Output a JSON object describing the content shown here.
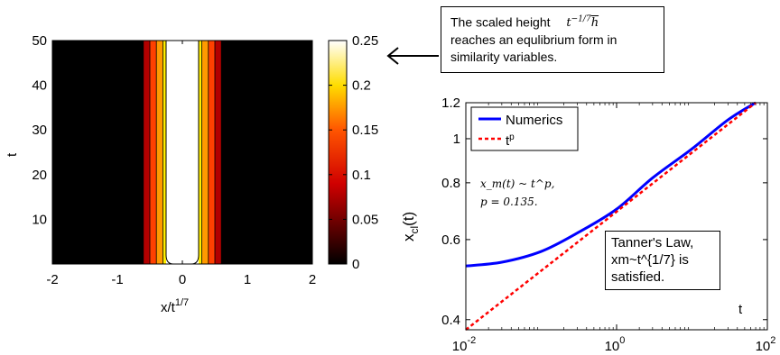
{
  "chart_data": [
    {
      "type": "heatmap",
      "xlabel": "x/t",
      "xlabel_sup": "1/7",
      "ylabel": "t",
      "xlim": [
        -2,
        2
      ],
      "ylim": [
        0,
        50
      ],
      "x_ticks": [
        -2,
        -1,
        0,
        1,
        2
      ],
      "y_ticks": [
        10,
        20,
        30,
        40,
        50
      ],
      "colorbar_range": [
        0,
        0.25
      ],
      "colorbar_ticks": [
        "0",
        "0.05",
        "0.1",
        "0.15",
        "0.2",
        "0.25"
      ],
      "colormap": "hot",
      "contour_levels": [
        0.05,
        0.1,
        0.15,
        0.2
      ],
      "profile": {
        "x": [
          -0.6,
          -0.5,
          -0.4,
          -0.25,
          0,
          0.25,
          0.4,
          0.5,
          0.6
        ],
        "value": [
          0.03,
          0.07,
          0.12,
          0.2,
          0.25,
          0.2,
          0.12,
          0.07,
          0.03
        ]
      },
      "colors": {
        "background": "#000000",
        "band_outer": "#b30000",
        "band_2": "#ff4000",
        "band_3": "#ff9a00",
        "band_4": "#ffee00",
        "core": "#ffffff"
      }
    },
    {
      "type": "line",
      "xscale": "log",
      "yscale": "log",
      "xlabel": "t",
      "ylabel": "x",
      "ylabel_sub": "cl",
      "ylabel_suffix": "(t)",
      "xlim": [
        0.01,
        100
      ],
      "ylim": [
        0.38,
        1.2
      ],
      "x_ticks": [
        {
          "base": "10",
          "exp": "-2",
          "value": 0.01
        },
        {
          "base": "10",
          "exp": "0",
          "value": 1
        },
        {
          "base": "10",
          "exp": "2",
          "value": 100
        }
      ],
      "y_ticks": [
        {
          "label": "0.4",
          "value": 0.4
        },
        {
          "label": "0.6",
          "value": 0.6
        },
        {
          "label": "0.8",
          "value": 0.8
        },
        {
          "label": "1",
          "value": 1.0
        },
        {
          "label": "1.2",
          "value": 1.2
        }
      ],
      "legend": {
        "position": "top-left",
        "entries": [
          "Numerics",
          "t"
        ],
        "entries_sup": [
          "",
          "p"
        ]
      },
      "series": [
        {
          "name": "Numerics",
          "color": "#0000ff",
          "style": "solid",
          "x": [
            0.01,
            0.03,
            0.1,
            0.3,
            1,
            3,
            10,
            30,
            70
          ],
          "y": [
            0.525,
            0.535,
            0.565,
            0.62,
            0.7,
            0.82,
            0.95,
            1.1,
            1.2
          ]
        },
        {
          "name": "t",
          "color": "#ff0000",
          "style": "dashed",
          "x": [
            0.01,
            70
          ],
          "y": [
            0.38,
            1.2
          ]
        }
      ],
      "annotations": {
        "formula_line1": "x_m(t) ~ t^p,",
        "formula_line2": "p = 0.135."
      }
    }
  ],
  "notes": {
    "top_note": {
      "line1_prefix": "The scaled height",
      "line1_math_base": "t",
      "line1_math_exp": "−1/7",
      "line1_math_var": "h",
      "line2": "reaches an equlibrium form in",
      "line3": "similarity variables."
    },
    "tanner_note": {
      "line1": "Tanner's Law,",
      "line2": "xm~t^{1/7} is",
      "line3": "satisfied."
    }
  }
}
